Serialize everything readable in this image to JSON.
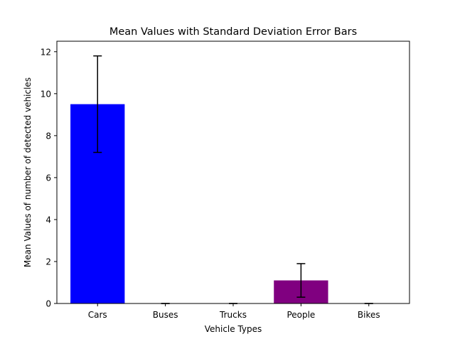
{
  "chart_data": {
    "type": "bar",
    "title": "Mean Values with Standard Deviation Error Bars",
    "xlabel": "Vehicle Types",
    "ylabel": "Mean Values of number of detected vehicles",
    "categories": [
      "Cars",
      "Buses",
      "Trucks",
      "People",
      "Bikes"
    ],
    "values": [
      9.5,
      0,
      0,
      1.1,
      0
    ],
    "errors": [
      2.3,
      0,
      0,
      0.8,
      0
    ],
    "bar_colors": [
      "#0000ff",
      "#ffa500",
      "#008000",
      "#800080",
      "#ff0000"
    ],
    "ylim": [
      0,
      12.5
    ],
    "yticks": [
      0,
      2,
      4,
      6,
      8,
      10,
      12
    ],
    "grid": false,
    "legend": "none"
  }
}
